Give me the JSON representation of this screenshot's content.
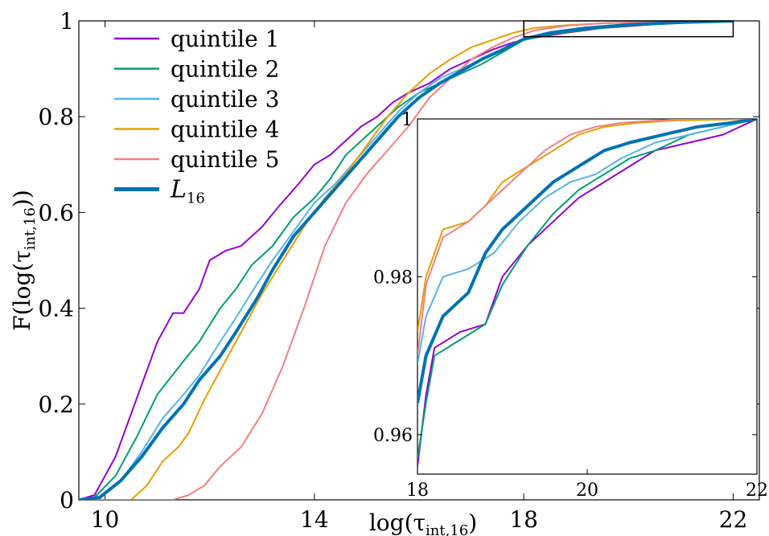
{
  "chart_data": [
    {
      "type": "line",
      "title": "",
      "xlabel": "log(τ_int,16)",
      "ylabel": "F(log(τ_int,16))",
      "xlim": [
        9.5,
        22.5
      ],
      "ylim": [
        0,
        1
      ],
      "xticks": [
        10,
        14,
        18,
        22
      ],
      "yticks": [
        0,
        0.2,
        0.4,
        0.6,
        0.8,
        1
      ],
      "ytick_labels": [
        "0",
        "0.2",
        "0.4",
        "0.6",
        "0.8",
        "1"
      ],
      "legend_position": "top-left",
      "inset_box": {
        "x": [
          18.0,
          22.0
        ],
        "y": [
          0.967,
          1.0
        ]
      },
      "series": [
        {
          "name": "quintile 1",
          "color": "#9400d3",
          "width": 2,
          "x": [
            9.5,
            9.8,
            10.2,
            10.6,
            11.0,
            11.3,
            11.5,
            11.8,
            12.0,
            12.3,
            12.6,
            13.0,
            13.3,
            13.7,
            14.0,
            14.3,
            14.6,
            14.9,
            15.2,
            15.5,
            15.8,
            16.2,
            16.6,
            17.0,
            17.4,
            17.8,
            18.2,
            18.8,
            19.5,
            20.5,
            21.5,
            22.0
          ],
          "y": [
            0,
            0.01,
            0.09,
            0.21,
            0.33,
            0.39,
            0.39,
            0.44,
            0.5,
            0.52,
            0.53,
            0.57,
            0.61,
            0.66,
            0.7,
            0.72,
            0.75,
            0.78,
            0.8,
            0.83,
            0.85,
            0.87,
            0.9,
            0.92,
            0.94,
            0.955,
            0.965,
            0.975,
            0.985,
            0.993,
            0.998,
            1.0
          ]
        },
        {
          "name": "quintile 2",
          "color": "#009e73",
          "width": 2,
          "x": [
            9.5,
            9.8,
            10.2,
            10.6,
            11.0,
            11.5,
            11.8,
            12.2,
            12.5,
            12.8,
            13.2,
            13.6,
            14.0,
            14.3,
            14.6,
            15.0,
            15.3,
            15.6,
            16.0,
            16.4,
            16.8,
            17.2,
            17.6,
            18.0,
            18.5,
            19.2,
            20.0,
            21.0,
            22.0
          ],
          "y": [
            0,
            0.005,
            0.05,
            0.13,
            0.22,
            0.29,
            0.33,
            0.4,
            0.44,
            0.49,
            0.53,
            0.59,
            0.63,
            0.67,
            0.72,
            0.76,
            0.79,
            0.82,
            0.85,
            0.87,
            0.89,
            0.91,
            0.935,
            0.96,
            0.972,
            0.982,
            0.99,
            0.997,
            1.0
          ]
        },
        {
          "name": "quintile 3",
          "color": "#56b4e9",
          "width": 2,
          "x": [
            9.5,
            9.9,
            10.3,
            10.7,
            11.1,
            11.5,
            11.8,
            12.2,
            12.5,
            12.9,
            13.2,
            13.6,
            14.0,
            14.4,
            14.8,
            15.2,
            15.6,
            16.0,
            16.4,
            16.8,
            17.2,
            17.6,
            18.0,
            18.5,
            19.2,
            20.0,
            21.0,
            22.0
          ],
          "y": [
            0,
            0.005,
            0.04,
            0.1,
            0.17,
            0.22,
            0.26,
            0.33,
            0.38,
            0.45,
            0.5,
            0.56,
            0.62,
            0.66,
            0.71,
            0.76,
            0.81,
            0.85,
            0.88,
            0.9,
            0.92,
            0.94,
            0.962,
            0.975,
            0.985,
            0.992,
            0.997,
            1.0
          ]
        },
        {
          "name": "quintile 4",
          "color": "#e69f00",
          "width": 2,
          "x": [
            9.5,
            10.5,
            10.8,
            11.1,
            11.4,
            11.6,
            11.9,
            12.2,
            12.6,
            13.0,
            13.4,
            13.8,
            14.2,
            14.6,
            15.0,
            15.4,
            15.8,
            16.2,
            16.6,
            17.0,
            17.4,
            17.8,
            18.2,
            18.8,
            19.5,
            20.5,
            21.5,
            22.0
          ],
          "y": [
            0,
            0,
            0.03,
            0.08,
            0.11,
            0.14,
            0.21,
            0.27,
            0.35,
            0.43,
            0.5,
            0.57,
            0.63,
            0.68,
            0.74,
            0.8,
            0.85,
            0.89,
            0.92,
            0.945,
            0.96,
            0.975,
            0.985,
            0.991,
            0.995,
            0.998,
            1.0,
            1.0
          ]
        },
        {
          "name": "quintile 5",
          "color": "#f08080",
          "width": 2,
          "x": [
            9.5,
            11.3,
            11.6,
            11.9,
            12.2,
            12.6,
            13.0,
            13.4,
            13.8,
            14.2,
            14.6,
            15.0,
            15.4,
            15.8,
            16.2,
            16.6,
            17.0,
            17.4,
            17.8,
            18.2,
            18.8,
            19.5,
            20.5,
            21.5,
            22.0
          ],
          "y": [
            0,
            0,
            0.01,
            0.03,
            0.07,
            0.11,
            0.18,
            0.28,
            0.4,
            0.53,
            0.62,
            0.68,
            0.73,
            0.78,
            0.84,
            0.88,
            0.92,
            0.945,
            0.965,
            0.98,
            0.99,
            0.995,
            0.998,
            1.0,
            1.0
          ]
        },
        {
          "name": "L_16",
          "color": "#0072b2",
          "width": 4,
          "x": [
            9.5,
            9.9,
            10.3,
            10.7,
            11.1,
            11.5,
            11.8,
            12.2,
            12.5,
            12.9,
            13.2,
            13.6,
            14.0,
            14.4,
            14.8,
            15.2,
            15.6,
            16.0,
            16.4,
            16.8,
            17.2,
            17.6,
            18.0,
            18.5,
            19.2,
            20.0,
            21.0,
            22.0
          ],
          "y": [
            0,
            0.005,
            0.04,
            0.09,
            0.15,
            0.2,
            0.25,
            0.3,
            0.35,
            0.42,
            0.48,
            0.55,
            0.6,
            0.65,
            0.7,
            0.75,
            0.8,
            0.84,
            0.87,
            0.895,
            0.92,
            0.94,
            0.962,
            0.975,
            0.985,
            0.992,
            0.997,
            1.0
          ]
        }
      ]
    },
    {
      "type": "line",
      "title": "",
      "xlim": [
        18,
        22
      ],
      "ylim": [
        0.955,
        1.0
      ],
      "xticks": [
        18,
        20,
        22
      ],
      "yticks": [
        0.96,
        0.98,
        1.0
      ],
      "ytick_labels": [
        "0.96",
        "0.98",
        "1"
      ],
      "series": [
        {
          "name": "quintile 1",
          "color": "#9400d3",
          "width": 2,
          "x": [
            18.0,
            18.1,
            18.2,
            18.5,
            18.8,
            19.0,
            19.3,
            19.6,
            19.9,
            20.2,
            20.5,
            20.8,
            21.2,
            21.6,
            22.0
          ],
          "y": [
            0.956,
            0.965,
            0.971,
            0.973,
            0.974,
            0.98,
            0.984,
            0.987,
            0.99,
            0.992,
            0.994,
            0.996,
            0.997,
            0.998,
            1.0
          ]
        },
        {
          "name": "quintile 2",
          "color": "#009e73",
          "width": 2,
          "x": [
            18.0,
            18.1,
            18.2,
            18.5,
            18.8,
            19.0,
            19.3,
            19.6,
            19.9,
            20.2,
            20.5,
            20.8,
            21.2,
            21.6,
            22.0
          ],
          "y": [
            0.957,
            0.964,
            0.97,
            0.972,
            0.974,
            0.979,
            0.984,
            0.988,
            0.991,
            0.993,
            0.995,
            0.996,
            0.998,
            0.999,
            1.0
          ]
        },
        {
          "name": "quintile 3",
          "color": "#56b4e9",
          "width": 2,
          "x": [
            18.0,
            18.1,
            18.3,
            18.6,
            18.9,
            19.2,
            19.5,
            19.8,
            20.1,
            20.4,
            20.8,
            21.2,
            21.6,
            22.0
          ],
          "y": [
            0.969,
            0.975,
            0.98,
            0.981,
            0.983,
            0.987,
            0.99,
            0.992,
            0.993,
            0.995,
            0.997,
            0.998,
            0.999,
            1.0
          ]
        },
        {
          "name": "quintile 4",
          "color": "#e69f00",
          "width": 2,
          "x": [
            18.0,
            18.1,
            18.3,
            18.6,
            18.8,
            19.0,
            19.3,
            19.6,
            19.9,
            20.2,
            20.6,
            21.0,
            21.5,
            22.0
          ],
          "y": [
            0.973,
            0.98,
            0.986,
            0.987,
            0.989,
            0.992,
            0.994,
            0.996,
            0.998,
            0.999,
            0.9995,
            0.9998,
            0.9999,
            1.0
          ]
        },
        {
          "name": "quintile 5",
          "color": "#f08080",
          "width": 2,
          "x": [
            18.0,
            18.1,
            18.3,
            18.6,
            18.9,
            19.2,
            19.5,
            19.8,
            20.1,
            20.4,
            20.8,
            21.2,
            21.6,
            22.0
          ],
          "y": [
            0.97,
            0.979,
            0.985,
            0.987,
            0.99,
            0.993,
            0.996,
            0.998,
            0.999,
            0.9995,
            0.9998,
            1.0,
            1.0,
            1.0
          ]
        },
        {
          "name": "L_16",
          "color": "#0072b2",
          "width": 4,
          "x": [
            18.0,
            18.1,
            18.3,
            18.6,
            18.8,
            19.0,
            19.3,
            19.6,
            19.9,
            20.2,
            20.5,
            20.9,
            21.3,
            21.7,
            22.0
          ],
          "y": [
            0.964,
            0.97,
            0.975,
            0.978,
            0.983,
            0.986,
            0.989,
            0.992,
            0.994,
            0.996,
            0.997,
            0.998,
            0.999,
            0.9995,
            1.0
          ]
        }
      ]
    }
  ],
  "legend": {
    "items": [
      {
        "label": "quintile 1",
        "color": "#9400d3"
      },
      {
        "label": "quintile 2",
        "color": "#009e73"
      },
      {
        "label": "quintile 3",
        "color": "#56b4e9"
      },
      {
        "label": "quintile 4",
        "color": "#e69f00"
      },
      {
        "label": "quintile 5",
        "color": "#f08080"
      }
    ],
    "l16_main": "L",
    "l16_sub": "16",
    "l16_color": "#0072b2"
  },
  "labels": {
    "x_main": "log(τ",
    "x_sub": "int,16",
    "x_close": ")",
    "y_main": "F(log(τ",
    "y_sub": "int,16",
    "y_close": "))"
  }
}
